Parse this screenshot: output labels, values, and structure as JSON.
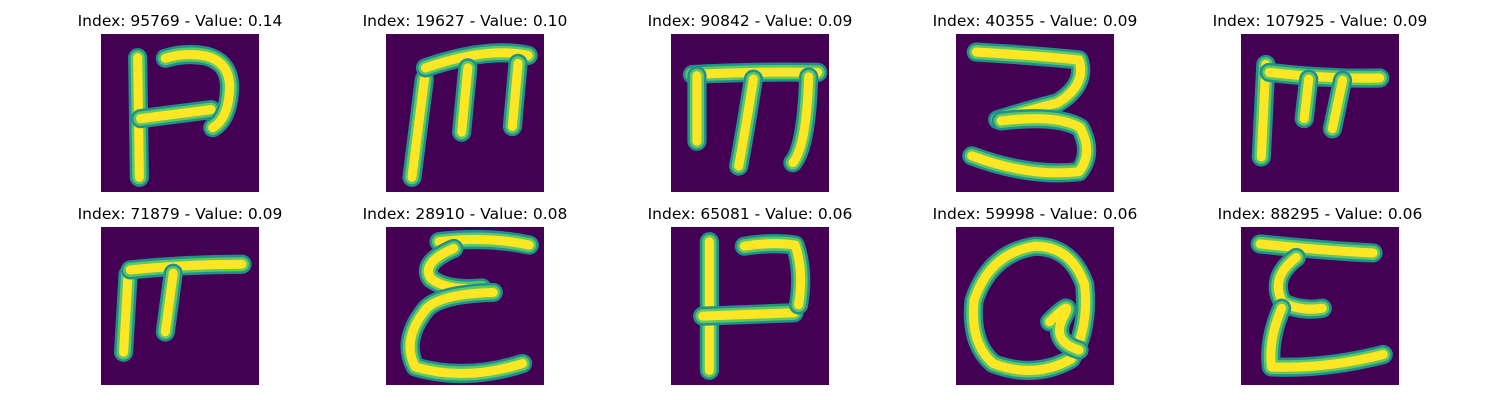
{
  "colors": {
    "background": "#440154",
    "edge": "#21908c",
    "mid": "#5ec962",
    "core": "#fde725"
  },
  "grid": {
    "panels": [
      {
        "title": "Index: 95769 - Value: 0.14",
        "glyph": "handwritten-glyph-hook"
      },
      {
        "title": "Index: 19627 - Value: 0.10",
        "glyph": "handwritten-glyph-m"
      },
      {
        "title": "Index: 90842 - Value: 0.09",
        "glyph": "handwritten-glyph-m-thin"
      },
      {
        "title": "Index: 40355 - Value: 0.09",
        "glyph": "handwritten-glyph-3"
      },
      {
        "title": "Index: 107925 - Value: 0.09",
        "glyph": "handwritten-glyph-pi"
      },
      {
        "title": "Index: 71879 - Value: 0.09",
        "glyph": "handwritten-glyph-f"
      },
      {
        "title": "Index: 28910 - Value: 0.08",
        "glyph": "handwritten-glyph-e-curly"
      },
      {
        "title": "Index: 65081 - Value: 0.06",
        "glyph": "handwritten-glyph-hook-2"
      },
      {
        "title": "Index: 59998 - Value: 0.06",
        "glyph": "handwritten-glyph-q"
      },
      {
        "title": "Index: 88295 - Value: 0.06",
        "glyph": "handwritten-glyph-e-curly-2"
      }
    ]
  }
}
